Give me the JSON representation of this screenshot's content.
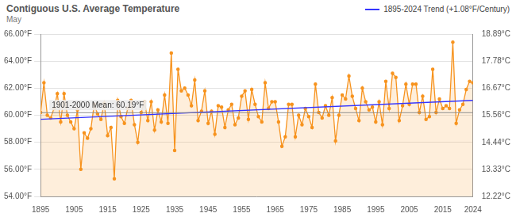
{
  "chart_data": {
    "type": "line",
    "title": "Contiguous U.S. Average Temperature",
    "subtitle": "May",
    "x": [
      1895,
      1896,
      1897,
      1898,
      1899,
      1900,
      1901,
      1902,
      1903,
      1904,
      1905,
      1906,
      1907,
      1908,
      1909,
      1910,
      1911,
      1912,
      1913,
      1914,
      1915,
      1916,
      1917,
      1918,
      1919,
      1920,
      1921,
      1922,
      1923,
      1924,
      1925,
      1926,
      1927,
      1928,
      1929,
      1930,
      1931,
      1932,
      1933,
      1934,
      1935,
      1936,
      1937,
      1938,
      1939,
      1940,
      1941,
      1942,
      1943,
      1944,
      1945,
      1946,
      1947,
      1948,
      1949,
      1950,
      1951,
      1952,
      1953,
      1954,
      1955,
      1956,
      1957,
      1958,
      1959,
      1960,
      1961,
      1962,
      1963,
      1964,
      1965,
      1966,
      1967,
      1968,
      1969,
      1970,
      1971,
      1972,
      1973,
      1974,
      1975,
      1976,
      1977,
      1978,
      1979,
      1980,
      1981,
      1982,
      1983,
      1984,
      1985,
      1986,
      1987,
      1988,
      1989,
      1990,
      1991,
      1992,
      1993,
      1994,
      1995,
      1996,
      1997,
      1998,
      1999,
      2000,
      2001,
      2002,
      2003,
      2004,
      2005,
      2006,
      2007,
      2008,
      2009,
      2010,
      2011,
      2012,
      2013,
      2014,
      2015,
      2016,
      2017,
      2018,
      2019,
      2020,
      2021,
      2022,
      2023,
      2024
    ],
    "series": [
      {
        "color": "#f7931e",
        "marker": "circle",
        "line_style": "solid",
        "values": [
          60.2,
          62.4,
          60.0,
          59.8,
          60.5,
          61.6,
          59.5,
          61.6,
          60.0,
          59.5,
          59.0,
          60.4,
          56.0,
          58.7,
          58.3,
          59.0,
          60.8,
          60.1,
          59.7,
          60.9,
          58.5,
          59.1,
          55.3,
          61.1,
          59.9,
          59.4,
          60.5,
          61.1,
          59.3,
          58.0,
          60.2,
          61.0,
          59.6,
          61.0,
          58.9,
          60.4,
          59.5,
          61.5,
          59.4,
          64.6,
          57.4,
          63.4,
          61.8,
          62.0,
          61.5,
          60.7,
          62.6,
          59.6,
          60.3,
          61.8,
          59.4,
          60.3,
          58.6,
          60.7,
          60.6,
          59.1,
          60.4,
          60.8,
          59.3,
          59.8,
          61.4,
          61.8,
          59.7,
          61.9,
          60.8,
          59.9,
          59.5,
          62.4,
          60.5,
          61.0,
          61.0,
          59.5,
          57.7,
          58.4,
          60.8,
          60.8,
          58.4,
          60.0,
          59.3,
          60.5,
          59.9,
          59.1,
          62.3,
          60.2,
          59.8,
          60.7,
          60.0,
          61.3,
          58.1,
          60.0,
          61.5,
          61.2,
          62.9,
          61.4,
          60.5,
          59.6,
          62.0,
          61.0,
          60.4,
          60.6,
          59.5,
          61.0,
          59.3,
          62.5,
          60.5,
          63.1,
          62.8,
          59.6,
          60.7,
          62.3,
          60.8,
          62.3,
          62.3,
          60.2,
          61.4,
          59.7,
          59.9,
          63.4,
          60.2,
          61.2,
          60.5,
          60.7,
          60.5,
          65.4,
          59.4,
          60.4,
          60.8,
          61.9,
          62.5,
          62.4
        ]
      },
      {
        "name": "1895-2024 Trend (+1.08°F/Century)",
        "color": "#3434ff",
        "marker": "none",
        "line_style": "solid",
        "x": [
          1895,
          2024
        ],
        "values": [
          59.7,
          61.1
        ]
      }
    ],
    "annotations": [
      {
        "text": "1901-2000 Mean: 60.19°F",
        "y": 60.19,
        "color": "#8a8a8a"
      }
    ],
    "xlim": [
      1895,
      2024
    ],
    "xticks": [
      1895,
      1905,
      1915,
      1925,
      1935,
      1945,
      1955,
      1965,
      1975,
      1985,
      1995,
      2005,
      2015,
      2024
    ],
    "ylim": [
      54,
      66
    ],
    "yticks": [
      {
        "value": 54,
        "label": "54.00°F"
      },
      {
        "value": 56,
        "label": "56.00°F"
      },
      {
        "value": 58,
        "label": "58.00°F"
      },
      {
        "value": 60,
        "label": "60.00°F"
      },
      {
        "value": 62,
        "label": "62.00°F"
      },
      {
        "value": 64,
        "label": "64.00°F"
      },
      {
        "value": 66,
        "label": "66.00°F"
      }
    ],
    "y2lim": [
      12.22,
      18.89
    ],
    "y2ticks": [
      {
        "value": 12.22,
        "label": "12.22°C"
      },
      {
        "value": 13.33,
        "label": "13.33°C"
      },
      {
        "value": 14.44,
        "label": "14.44°C"
      },
      {
        "value": 15.56,
        "label": "15.56°C"
      },
      {
        "value": 16.67,
        "label": "16.67°C"
      },
      {
        "value": 17.78,
        "label": "17.78°C"
      },
      {
        "value": 18.89,
        "label": "18.89°C"
      }
    ],
    "grid": true,
    "legend": "top-right"
  }
}
